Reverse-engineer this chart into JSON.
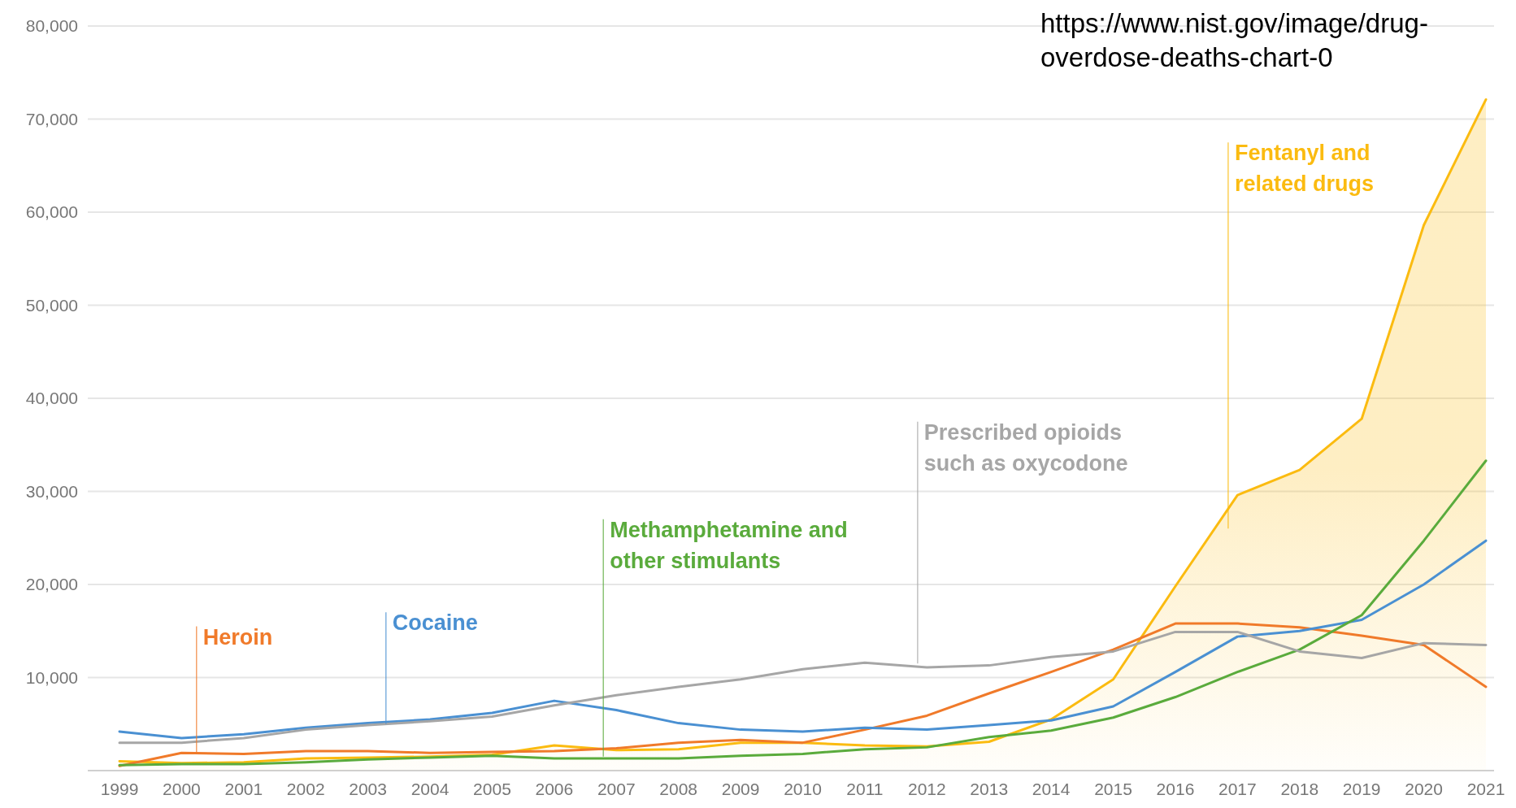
{
  "chart_data": {
    "type": "line",
    "categories": [
      "1999",
      "2000",
      "2001",
      "2002",
      "2003",
      "2004",
      "2005",
      "2006",
      "2007",
      "2008",
      "2009",
      "2010",
      "2011",
      "2012",
      "2013",
      "2014",
      "2015",
      "2016",
      "2017",
      "2018",
      "2019",
      "2020",
      "2021"
    ],
    "series": [
      {
        "name": "Heroin",
        "color": "#f07a2a",
        "values": [
          500,
          1900,
          1800,
          2100,
          2100,
          1900,
          2000,
          2100,
          2400,
          3000,
          3300,
          3000,
          4400,
          5900,
          8300,
          10600,
          13000,
          15800,
          15800,
          15400,
          14500,
          13500,
          9000
        ]
      },
      {
        "name": "Cocaine",
        "color": "#4a90d2",
        "values": [
          4200,
          3500,
          3900,
          4600,
          5100,
          5500,
          6200,
          7500,
          6500,
          5100,
          4400,
          4200,
          4600,
          4400,
          4900,
          5400,
          6900,
          10600,
          14400,
          15000,
          16200,
          20000,
          24700
        ]
      },
      {
        "name": "Methamphetamine and other stimulants",
        "color": "#5aab3c",
        "values": [
          600,
          700,
          700,
          900,
          1200,
          1400,
          1600,
          1300,
          1300,
          1300,
          1600,
          1800,
          2300,
          2500,
          3600,
          4300,
          5700,
          7900,
          10600,
          13000,
          16700,
          24700,
          33300
        ]
      },
      {
        "name": "Prescribed opioids such as oxycodone",
        "color": "#a6a6a6",
        "values": [
          3000,
          3000,
          3500,
          4400,
          4900,
          5300,
          5800,
          7000,
          8100,
          9000,
          9800,
          10900,
          11600,
          11100,
          11300,
          12200,
          12800,
          14900,
          14900,
          12800,
          12100,
          13700,
          13500
        ]
      },
      {
        "name": "Fentanyl and related drugs",
        "type": "area",
        "color": "#fbbb10",
        "values": [
          1000,
          800,
          900,
          1300,
          1400,
          1500,
          1700,
          2700,
          2200,
          2300,
          3000,
          3000,
          2700,
          2600,
          3100,
          5500,
          9800,
          19800,
          29600,
          32300,
          37800,
          58600,
          72100
        ]
      }
    ],
    "ylim": [
      0,
      80000
    ],
    "yticks": [
      {
        "value": 0,
        "label": null
      },
      {
        "value": 10000,
        "label": "10,000"
      },
      {
        "value": 20000,
        "label": "20,000"
      },
      {
        "value": 30000,
        "label": "30,000"
      },
      {
        "value": 40000,
        "label": "40,000"
      },
      {
        "value": 50000,
        "label": "50,000"
      },
      {
        "value": 60000,
        "label": "60,000"
      },
      {
        "value": 70000,
        "label": "70,000"
      },
      {
        "value": 80000,
        "label": "80,000"
      }
    ],
    "grid": "y",
    "annotations": [
      "https://www.nist.gov/image/drug-overdose-deaths-chart-0"
    ]
  }
}
